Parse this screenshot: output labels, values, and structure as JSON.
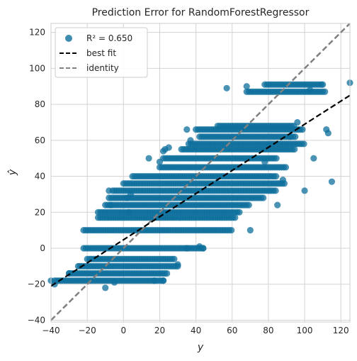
{
  "chart_data": {
    "type": "scatter",
    "title": "Prediction Error for RandomForestRegressor",
    "xlabel": "y",
    "ylabel": "ŷ",
    "xlim": [
      -40,
      125
    ],
    "ylim": [
      -41,
      125
    ],
    "xticks": [
      -40,
      -20,
      0,
      20,
      40,
      60,
      80,
      100,
      120
    ],
    "yticks": [
      -40,
      -20,
      0,
      20,
      40,
      60,
      80,
      100,
      120
    ],
    "grid": true,
    "legend_position": "top-left",
    "legend": {
      "scatter_label": "R² = 0.650",
      "best_fit_label": "best fit",
      "identity_label": "identity"
    },
    "colors": {
      "points": "#0e6f9c",
      "best_fit": "#000000",
      "identity": "#808080",
      "grid": "#d3d3d3"
    },
    "best_fit_line": {
      "x": [
        -40,
        125
      ],
      "y": [
        -21,
        85
      ]
    },
    "identity_line": {
      "x": [
        -40,
        125
      ],
      "y": [
        -40,
        125
      ]
    },
    "bands": [
      {
        "ŷ": -18,
        "x_from": -38,
        "x_to": 22
      },
      {
        "ŷ": -14,
        "x_from": -30,
        "x_to": 25
      },
      {
        "ŷ": -10,
        "x_from": -24,
        "x_to": 30
      },
      {
        "ŷ": -6,
        "x_from": -20,
        "x_to": 28
      },
      {
        "ŷ": 0,
        "x_from": -22,
        "x_to": 45
      },
      {
        "ŷ": 10,
        "x_from": -22,
        "x_to": 60
      },
      {
        "ŷ": 17,
        "x_from": -14,
        "x_to": 62
      },
      {
        "ŷ": 20,
        "x_from": -14,
        "x_to": 65
      },
      {
        "ŷ": 24,
        "x_from": -10,
        "x_to": 70
      },
      {
        "ŷ": 28,
        "x_from": -8,
        "x_to": 78
      },
      {
        "ŷ": 32,
        "x_from": -6,
        "x_to": 85
      },
      {
        "ŷ": 36,
        "x_from": 0,
        "x_to": 90
      },
      {
        "ŷ": 40,
        "x_from": 5,
        "x_to": 85
      },
      {
        "ŷ": 45,
        "x_from": 20,
        "x_to": 90
      },
      {
        "ŷ": 50,
        "x_from": 22,
        "x_to": 85
      },
      {
        "ŷ": 55,
        "x_from": 32,
        "x_to": 95
      },
      {
        "ŷ": 58,
        "x_from": 36,
        "x_to": 100
      },
      {
        "ŷ": 62,
        "x_from": 42,
        "x_to": 95
      },
      {
        "ŷ": 66,
        "x_from": 40,
        "x_to": 100
      },
      {
        "ŷ": 68,
        "x_from": 52,
        "x_to": 95
      },
      {
        "ŷ": 87,
        "x_from": 68,
        "x_to": 112
      },
      {
        "ŷ": 91,
        "x_from": 78,
        "x_to": 110
      }
    ],
    "outliers": [
      [
        -40,
        -18
      ],
      [
        -38,
        -20
      ],
      [
        -30,
        -14
      ],
      [
        -25,
        -10
      ],
      [
        -8,
        32
      ],
      [
        -7,
        24
      ],
      [
        2,
        28
      ],
      [
        3,
        20
      ],
      [
        4,
        30
      ],
      [
        14,
        50
      ],
      [
        20,
        48
      ],
      [
        22,
        54
      ],
      [
        23,
        55
      ],
      [
        25,
        56
      ],
      [
        35,
        66
      ],
      [
        37,
        60
      ],
      [
        57,
        89
      ],
      [
        68,
        90
      ],
      [
        78,
        48
      ],
      [
        85,
        24
      ],
      [
        88,
        38
      ],
      [
        92,
        62
      ],
      [
        96,
        70
      ],
      [
        100,
        32
      ],
      [
        105,
        50
      ],
      [
        112,
        66
      ],
      [
        113,
        64
      ],
      [
        115,
        37
      ],
      [
        125,
        92
      ],
      [
        110,
        91
      ],
      [
        103,
        88
      ],
      [
        -10,
        -22
      ],
      [
        -5,
        -19
      ],
      [
        17,
        -18
      ],
      [
        22,
        -18
      ],
      [
        35,
        0
      ],
      [
        30,
        -9
      ],
      [
        42,
        1
      ],
      [
        44,
        0
      ],
      [
        70,
        10
      ]
    ]
  }
}
